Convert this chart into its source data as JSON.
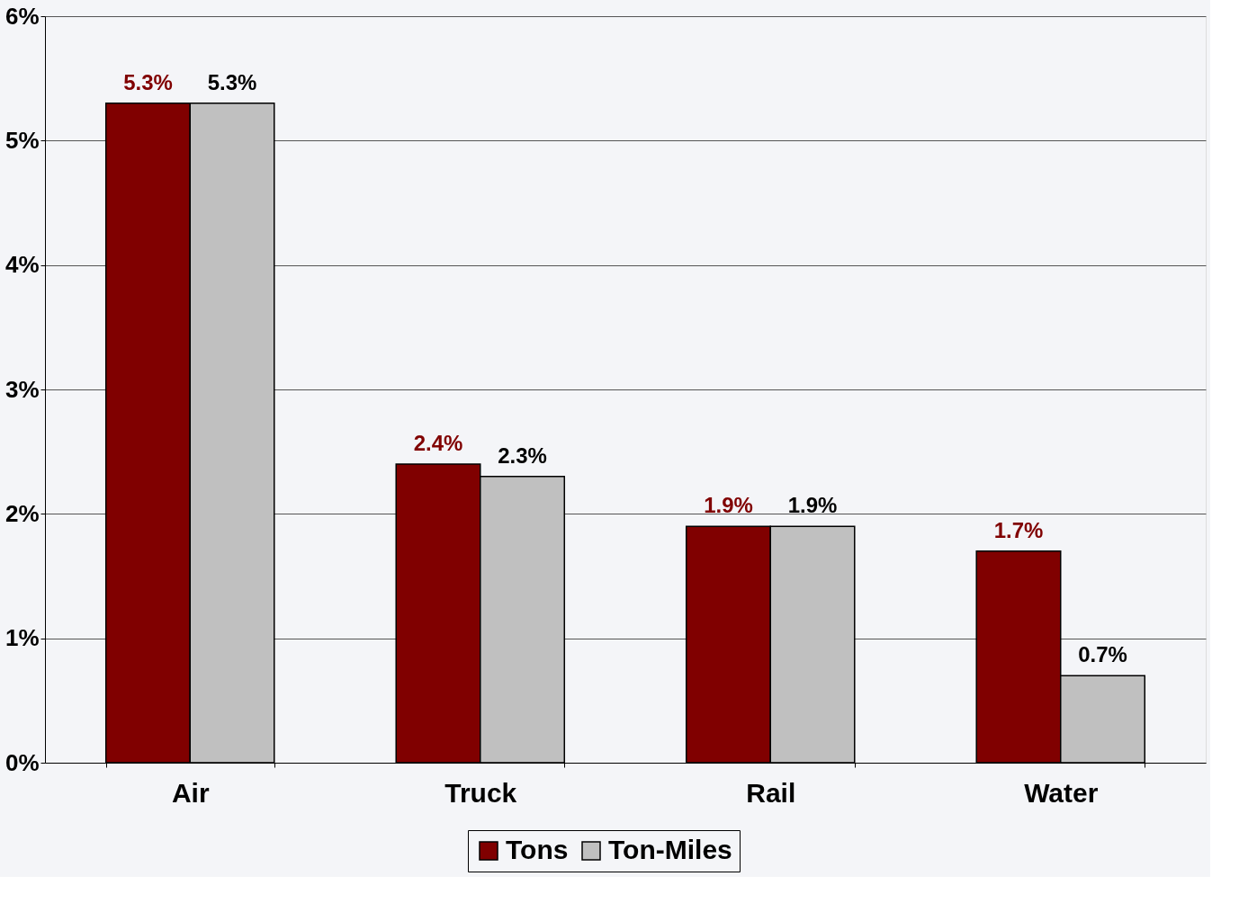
{
  "chart_data": {
    "type": "bar",
    "categories": [
      "Air",
      "Truck",
      "Rail",
      "Water"
    ],
    "series": [
      {
        "name": "Tons",
        "color": "#800000",
        "values": [
          5.3,
          2.4,
          1.9,
          1.7
        ],
        "value_labels": [
          "5.3%",
          "2.4%",
          "1.9%",
          "1.7%"
        ]
      },
      {
        "name": "Ton-Miles",
        "color": "#c0c0c0",
        "values": [
          5.3,
          2.3,
          1.9,
          0.7
        ],
        "value_labels": [
          "5.3%",
          "2.3%",
          "1.9%",
          "0.7%"
        ]
      }
    ],
    "ylim": [
      0,
      6
    ],
    "yticks": [
      {
        "value": 0,
        "label": "0%"
      },
      {
        "value": 1,
        "label": "1%"
      },
      {
        "value": 2,
        "label": "2%"
      },
      {
        "value": 3,
        "label": "3%"
      },
      {
        "value": 4,
        "label": "4%"
      },
      {
        "value": 5,
        "label": "5%"
      },
      {
        "value": 6,
        "label": "6%"
      }
    ],
    "grid": "y",
    "legend": "bottom"
  }
}
